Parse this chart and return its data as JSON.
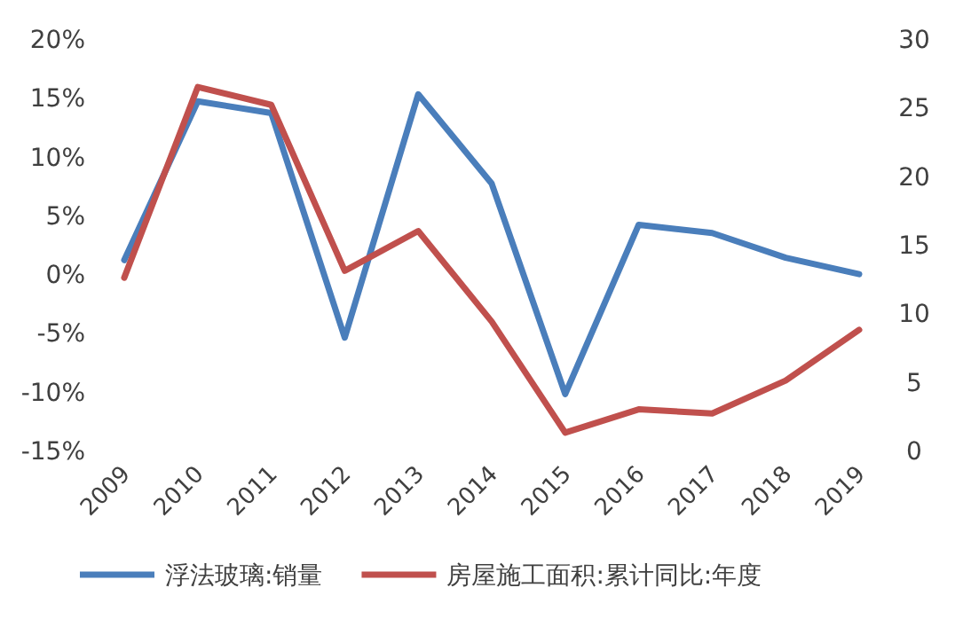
{
  "chart_data": {
    "type": "line",
    "categories": [
      "2009",
      "2010",
      "2011",
      "2012",
      "2013",
      "2014",
      "2015",
      "2016",
      "2017",
      "2018",
      "2019"
    ],
    "series": [
      {
        "name": "浮法玻璃:销量",
        "color": "#4a7ebb",
        "axis": "y",
        "values": [
          1.2,
          14.7,
          13.7,
          -5.4,
          15.3,
          7.7,
          -10.2,
          4.2,
          3.5,
          1.4,
          0.0
        ]
      },
      {
        "name": "房屋施工面积:累计同比:年度",
        "color": "#c0504d",
        "axis": "y2",
        "values": [
          12.6,
          26.5,
          25.2,
          13.1,
          16.0,
          9.4,
          1.3,
          3.0,
          2.7,
          5.1,
          8.8
        ]
      }
    ],
    "ylim": [
      -15,
      20
    ],
    "yticks": [
      {
        "value": -15,
        "label": "-15%"
      },
      {
        "value": -10,
        "label": "-10%"
      },
      {
        "value": -5,
        "label": "-5%"
      },
      {
        "value": 0,
        "label": "0%"
      },
      {
        "value": 5,
        "label": "5%"
      },
      {
        "value": 10,
        "label": "10%"
      },
      {
        "value": 15,
        "label": "15%"
      },
      {
        "value": 20,
        "label": "20%"
      }
    ],
    "y2lim": [
      0,
      30
    ],
    "y2ticks": [
      0,
      5,
      10,
      15,
      20,
      25,
      30
    ],
    "legend": "bottom"
  }
}
